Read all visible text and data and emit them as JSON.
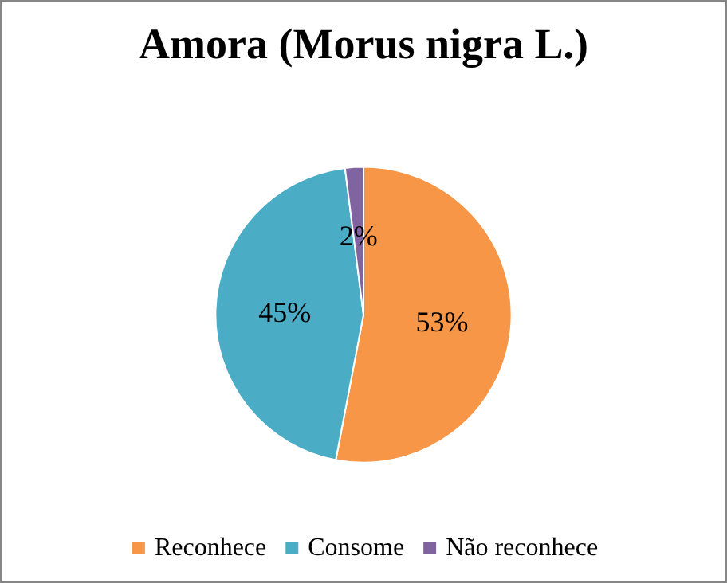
{
  "chart_data": {
    "type": "pie",
    "title": "Amora (Morus nigra L.)",
    "categories": [
      "Reconhece",
      "Consome",
      "Não reconhece"
    ],
    "values": [
      53,
      45,
      2
    ],
    "colors": [
      "#f79646",
      "#4bacc6",
      "#8064a2"
    ],
    "value_labels": [
      "53%",
      "45%",
      "2%"
    ],
    "legend": "bottom"
  }
}
